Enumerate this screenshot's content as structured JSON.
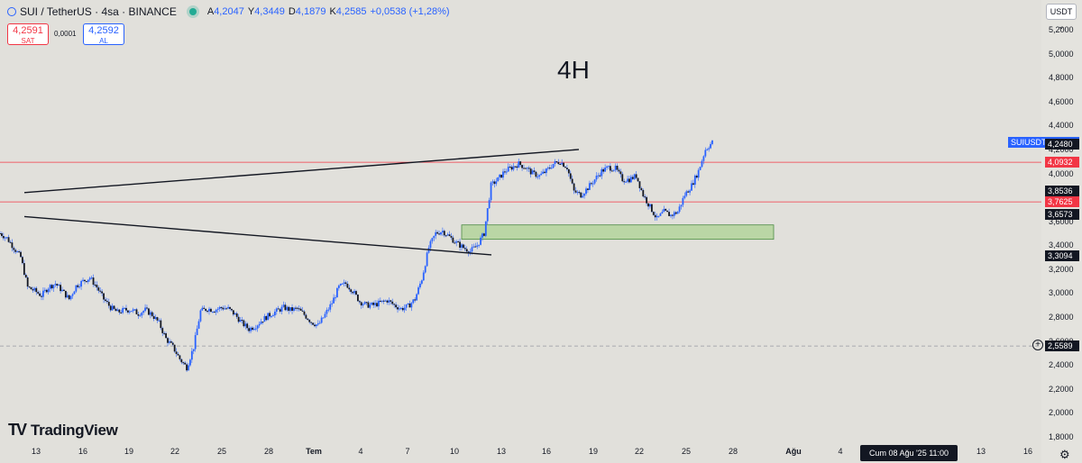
{
  "header": {
    "symbol": "SUI / TetherUS · 4sa · BINANCE",
    "ohlc": [
      {
        "label": "A",
        "value": "4,2047"
      },
      {
        "label": "Y",
        "value": "4,3449"
      },
      {
        "label": "D",
        "value": "4,1879"
      },
      {
        "label": "K",
        "value": "4,2585"
      }
    ],
    "change": "+0,0538 (+1,28%)"
  },
  "trade": {
    "sell_price": "4,2591",
    "sell_label": "SAT",
    "spread": "0,0001",
    "buy_price": "4,2592",
    "buy_label": "AL"
  },
  "annotation_text": "4H",
  "brand": "TradingView",
  "currency_button": "USDT ⌄",
  "date_tooltip": "Cum 08 Ağu '25   11:00",
  "colors": {
    "background": "#e1e0db",
    "candle": "#2962ff",
    "resistance_line": "#f23645",
    "zone_fill": "#a9d18e",
    "axis_text": "#131722"
  },
  "chart_data": {
    "type": "candlestick",
    "symbol": "SUIUSDT",
    "timeframe": "4H",
    "y_axis": {
      "min": 1.8,
      "max": 5.2,
      "ticks": [
        "5,2000",
        "5,0000",
        "4,8000",
        "4,6000",
        "4,4000",
        "4,2000",
        "4,0000",
        "3,8000",
        "3,6000",
        "3,4000",
        "3,2000",
        "3,0000",
        "2,8000",
        "2,6000",
        "2,4000",
        "2,2000",
        "2,0000",
        "1,8000"
      ],
      "tick_values": [
        5.2,
        5.0,
        4.8,
        4.6,
        4.4,
        4.2,
        4.0,
        3.8,
        3.6,
        3.4,
        3.2,
        3.0,
        2.8,
        2.6,
        2.4,
        2.2,
        2.0,
        1.8
      ]
    },
    "x_axis": {
      "labels": [
        "13",
        "16",
        "19",
        "22",
        "25",
        "28",
        "Tem",
        "4",
        "7",
        "10",
        "13",
        "16",
        "19",
        "22",
        "25",
        "28",
        "Ağu",
        "4",
        "7",
        "13",
        "16"
      ]
    },
    "price_tags": [
      {
        "label": "SUIUSDT",
        "value": "4,2585",
        "color": "#2962ff",
        "price": 4.2585
      },
      {
        "label": "",
        "value": "4,2480",
        "color": "#131722",
        "price": 4.248
      },
      {
        "label": "",
        "value": "4,0932",
        "color": "#f23645",
        "price": 4.0932
      },
      {
        "label": "",
        "value": "3,8536",
        "color": "#131722",
        "price": 3.8536
      },
      {
        "label": "",
        "value": "3,7625",
        "color": "#f23645",
        "price": 3.7625
      },
      {
        "label": "",
        "value": "3,6573",
        "color": "#131722",
        "price": 3.6573
      },
      {
        "label": "",
        "value": "3,3094",
        "color": "#131722",
        "price": 3.3094
      },
      {
        "label": "",
        "value": "2,5589",
        "color": "#131722",
        "price": 2.5589
      }
    ],
    "horizontal_lines": [
      {
        "price": 4.0932,
        "color": "#f23645",
        "style": "solid"
      },
      {
        "price": 3.7625,
        "color": "#f23645",
        "style": "solid"
      },
      {
        "price": 2.5589,
        "color": "#9598a1",
        "style": "dashed"
      }
    ],
    "support_zone": {
      "from_label": "10",
      "to_label": "28",
      "price_low": 3.45,
      "price_high": 3.57
    },
    "trendlines": [
      {
        "name": "upper",
        "start": {
          "x": "18",
          "price": 4.2
        },
        "end": {
          "x": "26",
          "price": 3.84
        }
      },
      {
        "name": "lower",
        "start": {
          "x": "12",
          "price": 3.32
        },
        "end": {
          "x": "26",
          "price": 3.64
        }
      }
    ],
    "price_path": [
      3.5,
      3.46,
      3.38,
      3.3,
      3.05,
      3.02,
      2.98,
      3.05,
      3.08,
      3.02,
      2.95,
      3.06,
      3.1,
      3.13,
      3.05,
      2.95,
      2.88,
      2.84,
      2.86,
      2.86,
      2.83,
      2.86,
      2.82,
      2.75,
      2.62,
      2.55,
      2.45,
      2.38,
      2.55,
      2.85,
      2.87,
      2.86,
      2.88,
      2.87,
      2.82,
      2.75,
      2.7,
      2.73,
      2.78,
      2.82,
      2.85,
      2.88,
      2.86,
      2.87,
      2.82,
      2.76,
      2.73,
      2.82,
      2.92,
      3.05,
      3.08,
      3.02,
      2.93,
      2.9,
      2.9,
      2.92,
      2.94,
      2.9,
      2.87,
      2.89,
      2.95,
      3.12,
      3.38,
      3.5,
      3.52,
      3.47,
      3.42,
      3.38,
      3.35,
      3.4,
      3.5,
      3.9,
      3.95,
      4.02,
      4.05,
      4.08,
      4.05,
      4.0,
      3.98,
      4.02,
      4.08,
      4.1,
      4.05,
      3.85,
      3.82,
      3.88,
      3.95,
      4.02,
      4.05,
      4.04,
      3.95,
      3.95,
      3.98,
      3.82,
      3.72,
      3.62,
      3.68,
      3.65,
      3.68,
      3.82,
      3.9,
      4.02,
      4.2,
      4.26
    ]
  }
}
